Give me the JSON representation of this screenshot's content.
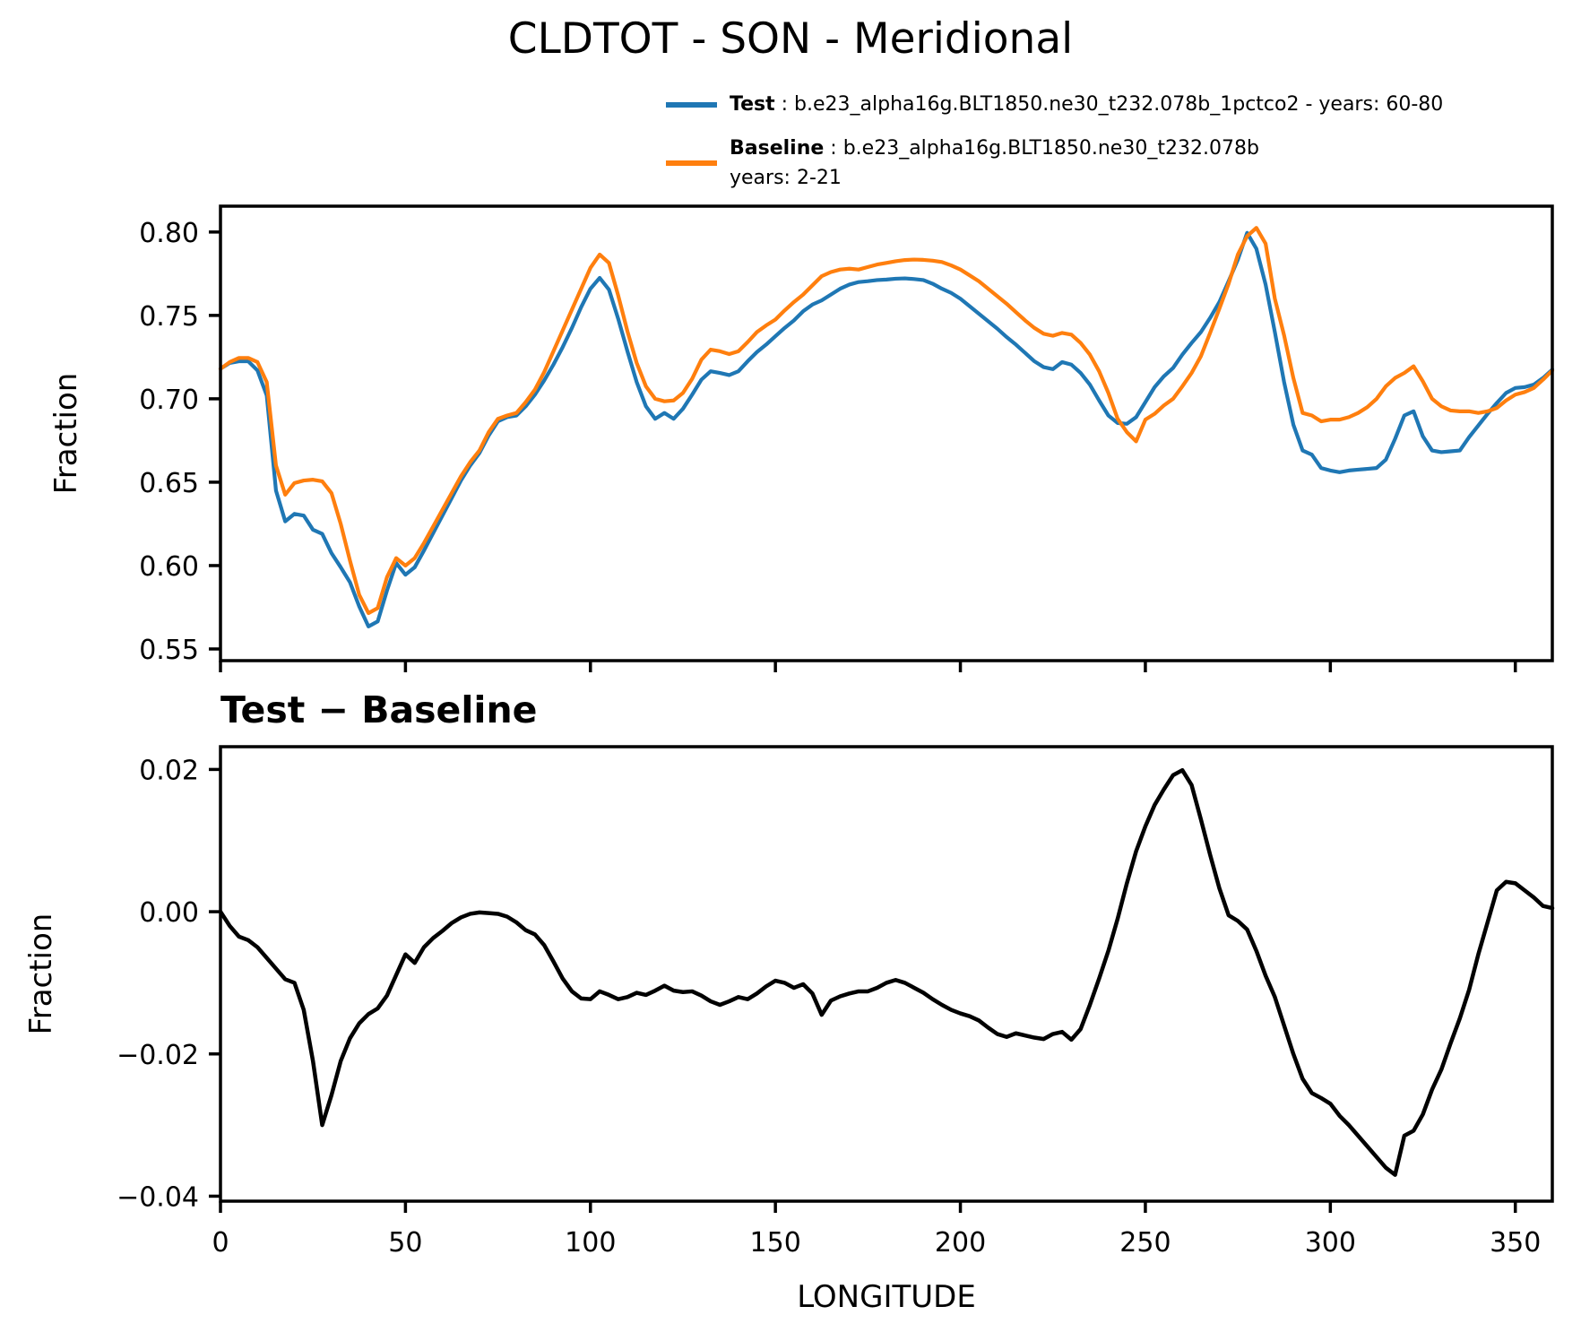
{
  "figure": {
    "title": "CLDTOT - SON - Meridional",
    "legend": {
      "test_label": "Test",
      "test_sep": " : ",
      "test_desc": "b.e23_alpha16g.BLT1850.ne30_t232.078b_1pctco2 - years: 60-80",
      "baseline_label": "Baseline",
      "baseline_sep": " : ",
      "baseline_desc": "b.e23_alpha16g.BLT1850.ne30_t232.078b",
      "baseline_years": "years: 2-21"
    },
    "colors": {
      "test": "#1f77b4",
      "baseline": "#ff7f0e",
      "diff": "#000000",
      "axis": "#000000"
    }
  },
  "chart_data": [
    {
      "type": "line",
      "title": "CLDTOT - SON - Meridional",
      "xlabel": "",
      "ylabel": "Fraction",
      "xlim": [
        0,
        360
      ],
      "ylim": [
        0.543,
        0.8155
      ],
      "xticks": [
        0,
        50,
        100,
        150,
        200,
        250,
        300,
        350
      ],
      "xtick_labels": [],
      "yticks": [
        0.8,
        0.75,
        0.7,
        0.65,
        0.6,
        0.55
      ],
      "ytick_labels": [
        "0.80",
        "0.75",
        "0.70",
        "0.65",
        "0.60",
        "0.55"
      ],
      "grid": false,
      "legend_position": "above right",
      "x_start": 0,
      "x_step": 2.5,
      "series": [
        {
          "name": "Test",
          "color": "#1f77b4",
          "values": [
            0.718,
            0.7215,
            0.7225,
            0.7225,
            0.717,
            0.702,
            0.645,
            0.6265,
            0.631,
            0.63,
            0.6215,
            0.619,
            0.6075,
            0.599,
            0.59,
            0.5755,
            0.5635,
            0.5665,
            0.585,
            0.6015,
            0.5945,
            0.599,
            0.609,
            0.6195,
            0.63,
            0.6405,
            0.651,
            0.66,
            0.6675,
            0.678,
            0.6865,
            0.689,
            0.69,
            0.6955,
            0.7025,
            0.711,
            0.7205,
            0.731,
            0.7425,
            0.755,
            0.766,
            0.7725,
            0.7655,
            0.748,
            0.7285,
            0.71,
            0.6955,
            0.688,
            0.6915,
            0.688,
            0.694,
            0.7025,
            0.7115,
            0.7165,
            0.7155,
            0.7142,
            0.7165,
            0.7225,
            0.728,
            0.7325,
            0.7375,
            0.7425,
            0.747,
            0.7525,
            0.7565,
            0.759,
            0.7625,
            0.766,
            0.7685,
            0.77,
            0.7705,
            0.7712,
            0.7715,
            0.772,
            0.7722,
            0.7718,
            0.7712,
            0.769,
            0.766,
            0.7635,
            0.76,
            0.7555,
            0.751,
            0.7465,
            0.742,
            0.737,
            0.7325,
            0.7275,
            0.7225,
            0.719,
            0.7178,
            0.722,
            0.7205,
            0.7155,
            0.7085,
            0.699,
            0.69,
            0.6855,
            0.685,
            0.689,
            0.698,
            0.707,
            0.7135,
            0.7185,
            0.7265,
            0.7335,
            0.74,
            0.7485,
            0.758,
            0.7705,
            0.7835,
            0.7995,
            0.79,
            0.7685,
            0.74,
            0.71,
            0.6845,
            0.669,
            0.6665,
            0.6585,
            0.657,
            0.656,
            0.657,
            0.6575,
            0.658,
            0.6585,
            0.6635,
            0.676,
            0.69,
            0.6925,
            0.6775,
            0.669,
            0.668,
            0.6685,
            0.669,
            0.677,
            0.684,
            0.691,
            0.6975,
            0.7035,
            0.7065,
            0.707,
            0.7085,
            0.7125,
            0.7175
          ]
        },
        {
          "name": "Baseline",
          "color": "#ff7f0e",
          "values": [
            0.718,
            0.722,
            0.7245,
            0.7245,
            0.722,
            0.71,
            0.66,
            0.6425,
            0.6495,
            0.651,
            0.6515,
            0.6505,
            0.6435,
            0.625,
            0.603,
            0.5825,
            0.5715,
            0.5745,
            0.593,
            0.6045,
            0.6,
            0.6045,
            0.6135,
            0.6235,
            0.6335,
            0.6435,
            0.6535,
            0.662,
            0.669,
            0.68,
            0.688,
            0.69,
            0.6915,
            0.698,
            0.7055,
            0.716,
            0.7285,
            0.741,
            0.7535,
            0.766,
            0.7785,
            0.7865,
            0.7815,
            0.762,
            0.7405,
            0.7215,
            0.7075,
            0.7,
            0.6985,
            0.699,
            0.7035,
            0.712,
            0.7235,
            0.7295,
            0.7285,
            0.7268,
            0.7285,
            0.734,
            0.74,
            0.744,
            0.7475,
            0.753,
            0.758,
            0.7625,
            0.768,
            0.7735,
            0.776,
            0.7775,
            0.778,
            0.7775,
            0.779,
            0.7805,
            0.7815,
            0.7825,
            0.7832,
            0.7835,
            0.7833,
            0.7828,
            0.782,
            0.78,
            0.7775,
            0.774,
            0.7705,
            0.766,
            0.7615,
            0.757,
            0.752,
            0.747,
            0.7425,
            0.739,
            0.7378,
            0.7395,
            0.7385,
            0.7335,
            0.7265,
            0.7165,
            0.7035,
            0.688,
            0.68,
            0.6745,
            0.6875,
            0.691,
            0.696,
            0.7,
            0.7075,
            0.7155,
            0.7255,
            0.7395,
            0.754,
            0.769,
            0.7865,
            0.7975,
            0.8025,
            0.793,
            0.76,
            0.738,
            0.7125,
            0.6915,
            0.69,
            0.6865,
            0.6875,
            0.6875,
            0.689,
            0.6915,
            0.695,
            0.7,
            0.7075,
            0.7125,
            0.7155,
            0.7195,
            0.7105,
            0.7,
            0.6955,
            0.693,
            0.6925,
            0.6925,
            0.6915,
            0.6925,
            0.6945,
            0.699,
            0.7025,
            0.704,
            0.7065,
            0.7115,
            0.717
          ]
        }
      ]
    },
    {
      "type": "line",
      "title": "Test − Baseline",
      "xlabel": "LONGITUDE",
      "ylabel": "Fraction",
      "xlim": [
        0,
        360
      ],
      "ylim": [
        -0.0407,
        0.0232
      ],
      "xticks": [
        0,
        50,
        100,
        150,
        200,
        250,
        300,
        350
      ],
      "xtick_labels": [
        "0",
        "50",
        "100",
        "150",
        "200",
        "250",
        "300",
        "350"
      ],
      "yticks": [
        0.02,
        0.0,
        -0.02,
        -0.04
      ],
      "ytick_labels": [
        "0.02",
        "0.00",
        "−0.02",
        "−0.04"
      ],
      "grid": false,
      "x_start": 0,
      "x_step": 2.5,
      "series": [
        {
          "name": "Test − Baseline",
          "color": "#000000",
          "values": [
            0,
            -0.002,
            -0.0035,
            -0.004,
            -0.005,
            -0.0065,
            -0.008,
            -0.0095,
            -0.01,
            -0.0138,
            -0.021,
            -0.03,
            -0.0258,
            -0.021,
            -0.0178,
            -0.0157,
            -0.0144,
            -0.0136,
            -0.0118,
            -0.0089,
            -0.006,
            -0.0072,
            -0.005,
            -0.0037,
            -0.0027,
            -0.0016,
            -0.0008,
            -0.0003,
            -0.0001,
            -0.0002,
            -0.0003,
            -0.0007,
            -0.0015,
            -0.0026,
            -0.0032,
            -0.0047,
            -0.007,
            -0.0094,
            -0.0112,
            -0.0122,
            -0.0123,
            -0.0112,
            -0.0117,
            -0.0123,
            -0.012,
            -0.0114,
            -0.0117,
            -0.0111,
            -0.0104,
            -0.0111,
            -0.0113,
            -0.0112,
            -0.0118,
            -0.0126,
            -0.0131,
            -0.0126,
            -0.012,
            -0.0123,
            -0.0115,
            -0.0105,
            -0.0097,
            -0.01,
            -0.0107,
            -0.0102,
            -0.0115,
            -0.0145,
            -0.0125,
            -0.0119,
            -0.0115,
            -0.0112,
            -0.0112,
            -0.0107,
            -0.01,
            -0.0096,
            -0.01,
            -0.0107,
            -0.0114,
            -0.0123,
            -0.0131,
            -0.0138,
            -0.0143,
            -0.0147,
            -0.0153,
            -0.0163,
            -0.0172,
            -0.0176,
            -0.0171,
            -0.0174,
            -0.0177,
            -0.0179,
            -0.0172,
            -0.0169,
            -0.018,
            -0.0165,
            -0.0131,
            -0.0094,
            -0.0055,
            -0.001,
            0.004,
            0.0085,
            0.012,
            0.015,
            0.0172,
            0.0192,
            0.0199,
            0.0178,
            0.013,
            0.008,
            0.0033,
            -0.0005,
            -0.0013,
            -0.0025,
            -0.0055,
            -0.009,
            -0.012,
            -0.016,
            -0.02,
            -0.0235,
            -0.0255,
            -0.0262,
            -0.027,
            -0.0287,
            -0.03,
            -0.0315,
            -0.033,
            -0.0345,
            -0.036,
            -0.037,
            -0.0315,
            -0.0308,
            -0.0285,
            -0.025,
            -0.0222,
            -0.0185,
            -0.015,
            -0.011,
            -0.006,
            -0.0015,
            0.003,
            0.0042,
            0.004,
            0.003,
            0.002,
            0.0008,
            0.0005
          ]
        }
      ]
    }
  ]
}
